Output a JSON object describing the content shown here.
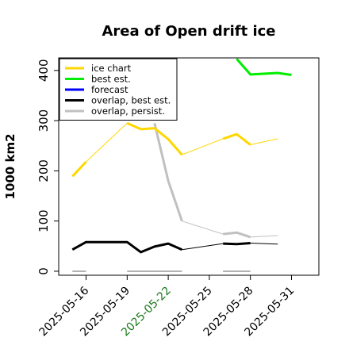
{
  "chart_data": {
    "type": "line",
    "title": "Area of Open drift ice",
    "xlabel": "",
    "ylabel": "1000 km2",
    "xlim": [
      "2025-05-14",
      "2025-06-02"
    ],
    "ylim": [
      -8,
      425
    ],
    "y_ticks": [
      0,
      100,
      200,
      300,
      400
    ],
    "x_ticks": [
      "2025-05-16",
      "2025-05-19",
      "2025-05-22",
      "2025-05-25",
      "2025-05-28",
      "2025-05-31"
    ],
    "highlight_x_tick": "2025-05-22",
    "highlight_color": "#1a7a1a",
    "grid": false,
    "legend_position": "top-left",
    "series": [
      {
        "name": "ice chart",
        "color": "#ffd700",
        "segments": [
          {
            "width": 3,
            "points": [
              [
                "2025-05-15",
                189
              ],
              [
                "2025-05-16",
                218
              ]
            ]
          },
          {
            "width": 1,
            "points": [
              [
                "2025-05-16",
                218
              ],
              [
                "2025-05-19",
                295
              ]
            ]
          },
          {
            "width": 3,
            "points": [
              [
                "2025-05-19",
                295
              ],
              [
                "2025-05-20",
                283
              ],
              [
                "2025-05-21",
                285
              ],
              [
                "2025-05-22",
                263
              ],
              [
                "2025-05-23",
                232
              ]
            ]
          },
          {
            "width": 1,
            "points": [
              [
                "2025-05-23",
                232
              ],
              [
                "2025-05-26",
                264
              ]
            ]
          },
          {
            "width": 3,
            "points": [
              [
                "2025-05-26",
                264
              ],
              [
                "2025-05-27",
                273
              ],
              [
                "2025-05-28",
                252
              ]
            ]
          },
          {
            "width": 1,
            "points": [
              [
                "2025-05-28",
                252
              ],
              [
                "2025-05-30",
                264
              ]
            ]
          }
        ]
      },
      {
        "name": "best est.",
        "color": "#00ee00",
        "segments": [
          {
            "width": 3,
            "points": [
              [
                "2025-05-27",
                423
              ],
              [
                "2025-05-28",
                392
              ],
              [
                "2025-05-30",
                395
              ],
              [
                "2025-05-31",
                391
              ]
            ]
          }
        ]
      },
      {
        "name": "forecast",
        "color": "#0000ff",
        "segments": []
      },
      {
        "name": "overlap, best est.",
        "color": "#000000",
        "segments": [
          {
            "width": 3,
            "points": [
              [
                "2025-05-15",
                43
              ],
              [
                "2025-05-16",
                58
              ],
              [
                "2025-05-19",
                58
              ],
              [
                "2025-05-20",
                38
              ],
              [
                "2025-05-21",
                49
              ],
              [
                "2025-05-22",
                55
              ],
              [
                "2025-05-23",
                43
              ]
            ]
          },
          {
            "width": 1,
            "points": [
              [
                "2025-05-23",
                43
              ],
              [
                "2025-05-26",
                55
              ]
            ]
          },
          {
            "width": 3,
            "points": [
              [
                "2025-05-26",
                55
              ],
              [
                "2025-05-27",
                54
              ],
              [
                "2025-05-28",
                56
              ]
            ]
          },
          {
            "width": 1,
            "points": [
              [
                "2025-05-28",
                56
              ],
              [
                "2025-05-30",
                54
              ]
            ]
          }
        ]
      },
      {
        "name": "overlap, persist.",
        "color": "#c0c0c0",
        "segments": [
          {
            "width": 3,
            "points": [
              [
                "2025-05-21",
                295
              ],
              [
                "2025-05-22",
                180
              ],
              [
                "2025-05-23",
                100
              ]
            ]
          },
          {
            "width": 1,
            "points": [
              [
                "2025-05-23",
                100
              ],
              [
                "2025-05-26",
                74
              ]
            ]
          },
          {
            "width": 3,
            "points": [
              [
                "2025-05-26",
                74
              ],
              [
                "2025-05-27",
                77
              ],
              [
                "2025-05-28",
                68
              ]
            ]
          },
          {
            "width": 1,
            "points": [
              [
                "2025-05-28",
                68
              ],
              [
                "2025-05-30",
                71
              ]
            ]
          }
        ]
      }
    ],
    "zero_marks": {
      "color": "#999999",
      "ranges": [
        [
          "2025-05-15",
          "2025-05-16"
        ],
        [
          "2025-05-19",
          "2025-05-23"
        ],
        [
          "2025-05-26",
          "2025-05-28"
        ]
      ],
      "value": 0
    }
  }
}
